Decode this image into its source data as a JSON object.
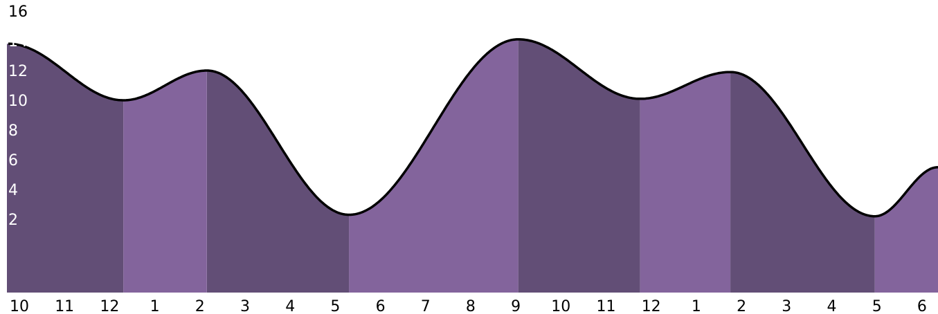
{
  "chart_data": {
    "type": "area",
    "title": "",
    "xlabel": "",
    "ylabel": "",
    "ylim": [
      0,
      16
    ],
    "grid": false,
    "legend": "none",
    "y_ticks": [
      "16",
      "14",
      "12",
      "10",
      "8",
      "6",
      "4",
      "2"
    ],
    "x_ticks": [
      "10",
      "11",
      "12",
      "1",
      "2",
      "3",
      "4",
      "5",
      "6",
      "7",
      "8",
      "9",
      "10",
      "11",
      "12",
      "1",
      "2",
      "3",
      "4",
      "5",
      "6"
    ],
    "tide_points": [
      {
        "time": 0.0,
        "level": 13.8
      },
      {
        "time": 2.55,
        "level": 10.0
      },
      {
        "time": 4.4,
        "level": 12.0
      },
      {
        "time": 7.55,
        "level": 2.3
      },
      {
        "time": 11.3,
        "level": 14.1
      },
      {
        "time": 14.0,
        "level": 10.1
      },
      {
        "time": 16.0,
        "level": 11.9
      },
      {
        "time": 19.2,
        "level": 2.2
      },
      {
        "time": 20.6,
        "level": 5.5
      }
    ],
    "phases": [
      {
        "start": 0.0,
        "end": 2.55,
        "state": "falling"
      },
      {
        "start": 2.55,
        "end": 4.4,
        "state": "rising"
      },
      {
        "start": 4.4,
        "end": 7.55,
        "state": "falling"
      },
      {
        "start": 7.55,
        "end": 11.3,
        "state": "rising"
      },
      {
        "start": 11.3,
        "end": 14.0,
        "state": "falling"
      },
      {
        "start": 14.0,
        "end": 16.0,
        "state": "rising"
      },
      {
        "start": 16.0,
        "end": 19.2,
        "state": "falling"
      },
      {
        "start": 19.2,
        "end": 20.6,
        "state": "rising"
      }
    ],
    "colors": {
      "falling": "#624e76",
      "rising": "#83649c",
      "curve": "#000000",
      "ytick_text": "#ffffff",
      "xtick_text": "#000000",
      "background": "#ffffff"
    }
  }
}
